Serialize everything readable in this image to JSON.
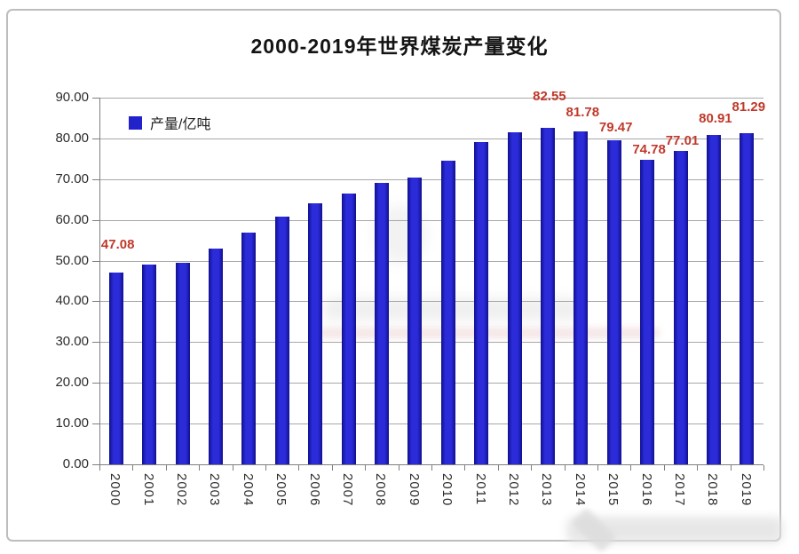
{
  "title": "2000-2019年世界煤炭产量变化",
  "legend": {
    "label": "产量/亿吨",
    "marker_color": "#2222cc"
  },
  "colors": {
    "bar": "#2222cc",
    "bar_edge": "#10108f",
    "data_label": "#c0392b",
    "gridline": "#a8a8a8",
    "axis": "#7f7f7f",
    "axis_text": "#2b2b2b",
    "title_text": "#141414"
  },
  "chart_data": {
    "type": "bar",
    "title": "2000-2019年世界煤炭产量变化",
    "series_name": "产量/亿吨",
    "categories": [
      "2000",
      "2001",
      "2002",
      "2003",
      "2004",
      "2005",
      "2006",
      "2007",
      "2008",
      "2009",
      "2010",
      "2011",
      "2012",
      "2013",
      "2014",
      "2015",
      "2016",
      "2017",
      "2018",
      "2019"
    ],
    "values": [
      47.08,
      49.0,
      49.5,
      52.9,
      56.9,
      60.8,
      64.1,
      66.5,
      69.1,
      70.3,
      74.6,
      79.2,
      81.6,
      82.55,
      81.78,
      79.47,
      74.78,
      77.01,
      80.91,
      81.29
    ],
    "data_labels": [
      {
        "category": "2000",
        "text": "47.08"
      },
      {
        "category": "2013",
        "text": "82.55"
      },
      {
        "category": "2014",
        "text": "81.78"
      },
      {
        "category": "2015",
        "text": "79.47"
      },
      {
        "category": "2016",
        "text": "74.78"
      },
      {
        "category": "2017",
        "text": "77.01"
      },
      {
        "category": "2018",
        "text": "80.91"
      },
      {
        "category": "2019",
        "text": "81.29"
      }
    ],
    "ylim": [
      0,
      90
    ],
    "ytick_step": 10,
    "yticks": [
      "0.00",
      "10.00",
      "20.00",
      "30.00",
      "40.00",
      "50.00",
      "60.00",
      "70.00",
      "80.00",
      "90.00"
    ],
    "grid": true,
    "xlabel_rotation_deg": 90,
    "legend_position": "top-left-inside",
    "xlabel": "",
    "ylabel": ""
  }
}
